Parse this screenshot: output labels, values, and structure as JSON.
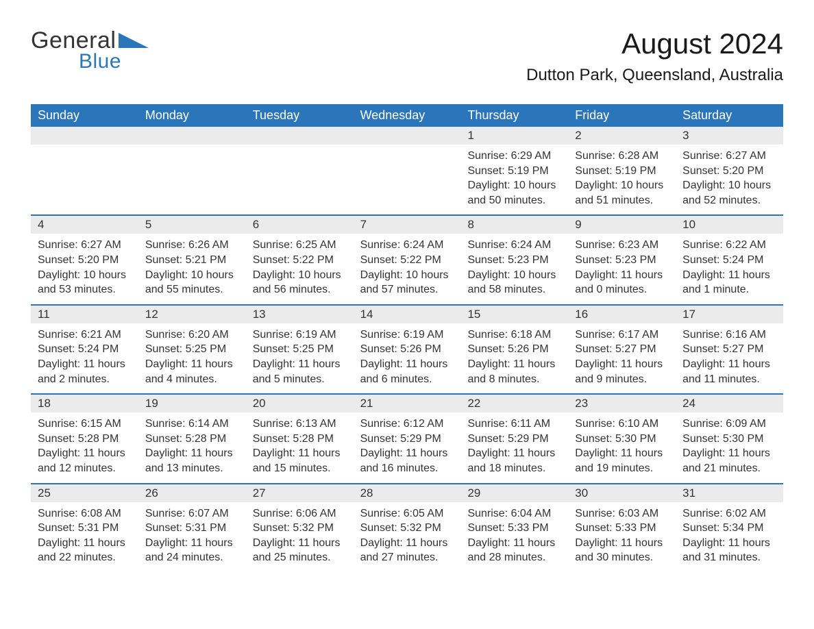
{
  "logo": {
    "part1": "General",
    "part2": "Blue",
    "triangle_color": "#2b75bb"
  },
  "title": "August 2024",
  "location": "Dutton Park, Queensland, Australia",
  "colors": {
    "header_bg": "#2b75bb",
    "header_text": "#ffffff",
    "daynum_bg": "#ebebeb",
    "text": "#333333",
    "week_divider": "#2b75bb",
    "page_bg": "#ffffff"
  },
  "typography": {
    "title_fontsize": 42,
    "location_fontsize": 24,
    "dayheader_fontsize": 18,
    "cell_fontsize": 16
  },
  "layout": {
    "columns": 7,
    "rows": 5,
    "first_day_column_index": 4
  },
  "day_names": [
    "Sunday",
    "Monday",
    "Tuesday",
    "Wednesday",
    "Thursday",
    "Friday",
    "Saturday"
  ],
  "weeks": [
    [
      null,
      null,
      null,
      null,
      {
        "n": "1",
        "sunrise": "Sunrise: 6:29 AM",
        "sunset": "Sunset: 5:19 PM",
        "daylight": "Daylight: 10 hours and 50 minutes."
      },
      {
        "n": "2",
        "sunrise": "Sunrise: 6:28 AM",
        "sunset": "Sunset: 5:19 PM",
        "daylight": "Daylight: 10 hours and 51 minutes."
      },
      {
        "n": "3",
        "sunrise": "Sunrise: 6:27 AM",
        "sunset": "Sunset: 5:20 PM",
        "daylight": "Daylight: 10 hours and 52 minutes."
      }
    ],
    [
      {
        "n": "4",
        "sunrise": "Sunrise: 6:27 AM",
        "sunset": "Sunset: 5:20 PM",
        "daylight": "Daylight: 10 hours and 53 minutes."
      },
      {
        "n": "5",
        "sunrise": "Sunrise: 6:26 AM",
        "sunset": "Sunset: 5:21 PM",
        "daylight": "Daylight: 10 hours and 55 minutes."
      },
      {
        "n": "6",
        "sunrise": "Sunrise: 6:25 AM",
        "sunset": "Sunset: 5:22 PM",
        "daylight": "Daylight: 10 hours and 56 minutes."
      },
      {
        "n": "7",
        "sunrise": "Sunrise: 6:24 AM",
        "sunset": "Sunset: 5:22 PM",
        "daylight": "Daylight: 10 hours and 57 minutes."
      },
      {
        "n": "8",
        "sunrise": "Sunrise: 6:24 AM",
        "sunset": "Sunset: 5:23 PM",
        "daylight": "Daylight: 10 hours and 58 minutes."
      },
      {
        "n": "9",
        "sunrise": "Sunrise: 6:23 AM",
        "sunset": "Sunset: 5:23 PM",
        "daylight": "Daylight: 11 hours and 0 minutes."
      },
      {
        "n": "10",
        "sunrise": "Sunrise: 6:22 AM",
        "sunset": "Sunset: 5:24 PM",
        "daylight": "Daylight: 11 hours and 1 minute."
      }
    ],
    [
      {
        "n": "11",
        "sunrise": "Sunrise: 6:21 AM",
        "sunset": "Sunset: 5:24 PM",
        "daylight": "Daylight: 11 hours and 2 minutes."
      },
      {
        "n": "12",
        "sunrise": "Sunrise: 6:20 AM",
        "sunset": "Sunset: 5:25 PM",
        "daylight": "Daylight: 11 hours and 4 minutes."
      },
      {
        "n": "13",
        "sunrise": "Sunrise: 6:19 AM",
        "sunset": "Sunset: 5:25 PM",
        "daylight": "Daylight: 11 hours and 5 minutes."
      },
      {
        "n": "14",
        "sunrise": "Sunrise: 6:19 AM",
        "sunset": "Sunset: 5:26 PM",
        "daylight": "Daylight: 11 hours and 6 minutes."
      },
      {
        "n": "15",
        "sunrise": "Sunrise: 6:18 AM",
        "sunset": "Sunset: 5:26 PM",
        "daylight": "Daylight: 11 hours and 8 minutes."
      },
      {
        "n": "16",
        "sunrise": "Sunrise: 6:17 AM",
        "sunset": "Sunset: 5:27 PM",
        "daylight": "Daylight: 11 hours and 9 minutes."
      },
      {
        "n": "17",
        "sunrise": "Sunrise: 6:16 AM",
        "sunset": "Sunset: 5:27 PM",
        "daylight": "Daylight: 11 hours and 11 minutes."
      }
    ],
    [
      {
        "n": "18",
        "sunrise": "Sunrise: 6:15 AM",
        "sunset": "Sunset: 5:28 PM",
        "daylight": "Daylight: 11 hours and 12 minutes."
      },
      {
        "n": "19",
        "sunrise": "Sunrise: 6:14 AM",
        "sunset": "Sunset: 5:28 PM",
        "daylight": "Daylight: 11 hours and 13 minutes."
      },
      {
        "n": "20",
        "sunrise": "Sunrise: 6:13 AM",
        "sunset": "Sunset: 5:28 PM",
        "daylight": "Daylight: 11 hours and 15 minutes."
      },
      {
        "n": "21",
        "sunrise": "Sunrise: 6:12 AM",
        "sunset": "Sunset: 5:29 PM",
        "daylight": "Daylight: 11 hours and 16 minutes."
      },
      {
        "n": "22",
        "sunrise": "Sunrise: 6:11 AM",
        "sunset": "Sunset: 5:29 PM",
        "daylight": "Daylight: 11 hours and 18 minutes."
      },
      {
        "n": "23",
        "sunrise": "Sunrise: 6:10 AM",
        "sunset": "Sunset: 5:30 PM",
        "daylight": "Daylight: 11 hours and 19 minutes."
      },
      {
        "n": "24",
        "sunrise": "Sunrise: 6:09 AM",
        "sunset": "Sunset: 5:30 PM",
        "daylight": "Daylight: 11 hours and 21 minutes."
      }
    ],
    [
      {
        "n": "25",
        "sunrise": "Sunrise: 6:08 AM",
        "sunset": "Sunset: 5:31 PM",
        "daylight": "Daylight: 11 hours and 22 minutes."
      },
      {
        "n": "26",
        "sunrise": "Sunrise: 6:07 AM",
        "sunset": "Sunset: 5:31 PM",
        "daylight": "Daylight: 11 hours and 24 minutes."
      },
      {
        "n": "27",
        "sunrise": "Sunrise: 6:06 AM",
        "sunset": "Sunset: 5:32 PM",
        "daylight": "Daylight: 11 hours and 25 minutes."
      },
      {
        "n": "28",
        "sunrise": "Sunrise: 6:05 AM",
        "sunset": "Sunset: 5:32 PM",
        "daylight": "Daylight: 11 hours and 27 minutes."
      },
      {
        "n": "29",
        "sunrise": "Sunrise: 6:04 AM",
        "sunset": "Sunset: 5:33 PM",
        "daylight": "Daylight: 11 hours and 28 minutes."
      },
      {
        "n": "30",
        "sunrise": "Sunrise: 6:03 AM",
        "sunset": "Sunset: 5:33 PM",
        "daylight": "Daylight: 11 hours and 30 minutes."
      },
      {
        "n": "31",
        "sunrise": "Sunrise: 6:02 AM",
        "sunset": "Sunset: 5:34 PM",
        "daylight": "Daylight: 11 hours and 31 minutes."
      }
    ]
  ]
}
